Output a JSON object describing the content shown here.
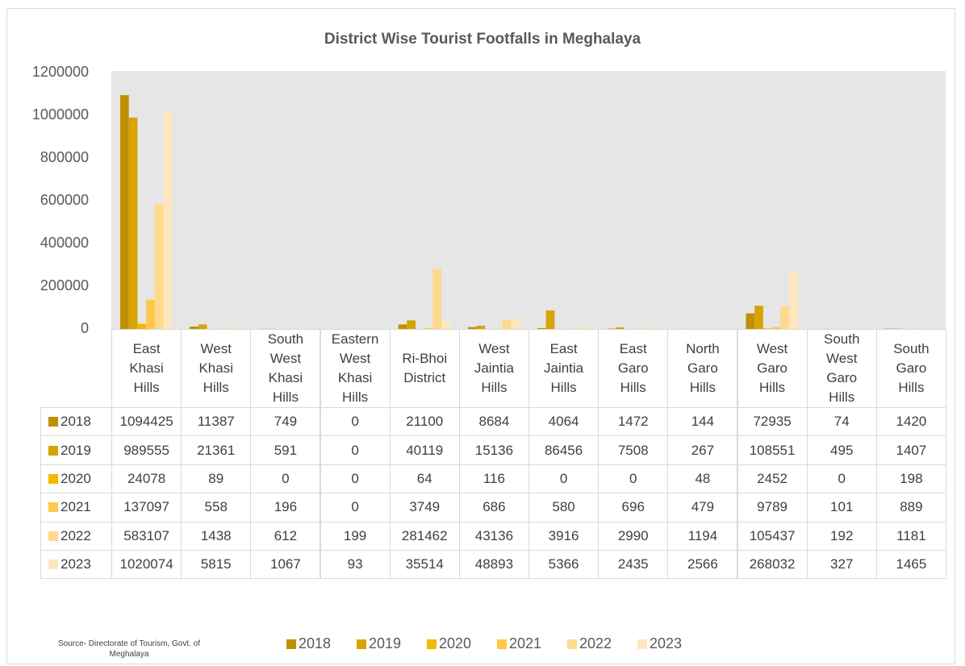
{
  "chart_data": {
    "type": "bar",
    "title": "District Wise Tourist Footfalls in Meghalaya",
    "source": "Source- Directorate of Tourism, Govt. of Meghalaya",
    "categories": [
      "East Khasi Hills",
      "West Khasi Hills",
      "South West Khasi Hills",
      "Eastern West Khasi Hills",
      "Ri-Bhoi District",
      "West Jaintia Hills",
      "East Jaintia Hills",
      "East Garo Hills",
      "North Garo Hills",
      "West Garo Hills",
      "South West Garo Hills",
      "South Garo Hills"
    ],
    "series": [
      {
        "name": "2018",
        "color": "#bf9000",
        "values": [
          1094425,
          11387,
          749,
          0,
          21100,
          8684,
          4064,
          1472,
          144,
          72935,
          74,
          1420
        ]
      },
      {
        "name": "2019",
        "color": "#d6a300",
        "values": [
          989555,
          21361,
          591,
          0,
          40119,
          15136,
          86456,
          7508,
          267,
          108551,
          495,
          1407
        ]
      },
      {
        "name": "2020",
        "color": "#f5b800",
        "values": [
          24078,
          89,
          0,
          0,
          64,
          116,
          0,
          0,
          48,
          2452,
          0,
          198
        ]
      },
      {
        "name": "2021",
        "color": "#ffc84a",
        "values": [
          137097,
          558,
          196,
          0,
          3749,
          686,
          580,
          696,
          479,
          9789,
          101,
          889
        ]
      },
      {
        "name": "2022",
        "color": "#ffd98c",
        "values": [
          583107,
          1438,
          612,
          199,
          281462,
          43136,
          3916,
          2990,
          1194,
          105437,
          192,
          1181
        ]
      },
      {
        "name": "2023",
        "color": "#ffe6bd",
        "values": [
          1020074,
          5815,
          1067,
          93,
          35514,
          48893,
          5366,
          2435,
          2566,
          268032,
          327,
          1465
        ]
      }
    ],
    "ylim": [
      0,
      1200000
    ],
    "yticks": [
      0,
      200000,
      400000,
      600000,
      800000,
      1000000,
      1200000
    ],
    "grid": false
  }
}
